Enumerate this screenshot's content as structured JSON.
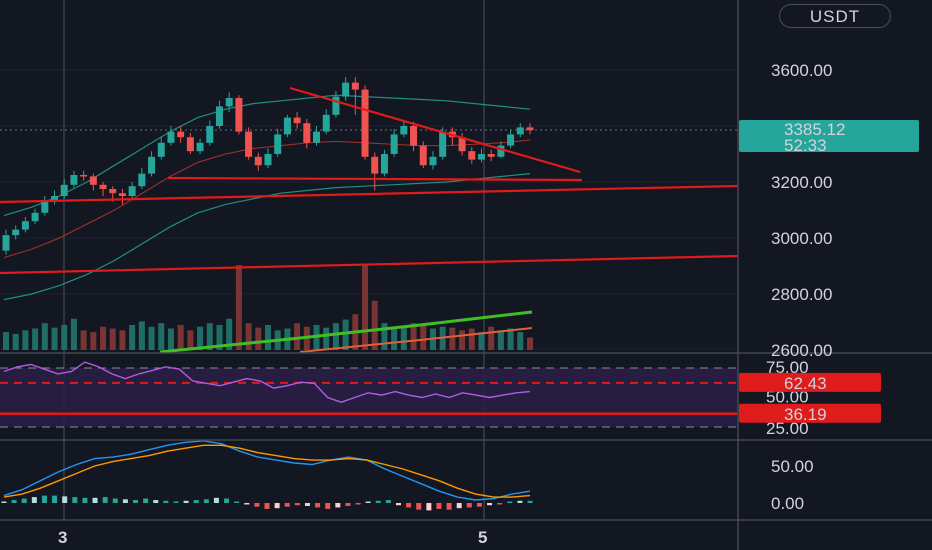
{
  "symbol_badge": "USDT",
  "colors": {
    "background": "#131722",
    "up": "#26a69a",
    "down": "#ef5350",
    "trendline": "#e01b1b",
    "price_badge": "#26a69a",
    "rsi_line": "#9c27b0",
    "macd_line": "#2196f3",
    "signal_line": "#ff9800",
    "volume_ma_green": "#3fbf22"
  },
  "price_axis": {
    "ticks": [
      "3600.00",
      "3200.00",
      "3000.00",
      "2800.00",
      "2600.00"
    ],
    "range": [
      2600,
      3800
    ]
  },
  "current_price": {
    "value": "3385.12",
    "countdown": "52:33"
  },
  "rsi_axis": {
    "ticks": [
      "75.00",
      "50.00",
      "25.00"
    ],
    "upper_label": "62.43",
    "lower_label": "36.19",
    "upper_level": 62.43,
    "lower_level": 36.19
  },
  "macd_axis": {
    "ticks": [
      "50.00",
      "0.00"
    ]
  },
  "time_axis": {
    "labels": [
      "3",
      "5"
    ]
  },
  "chart_data": [
    {
      "type": "candlestick",
      "pane": "price",
      "title": "",
      "ylim": [
        2600,
        3800
      ],
      "candles": [
        [
          2955,
          3010,
          3030,
          2940
        ],
        [
          3010,
          3030,
          3045,
          2995
        ],
        [
          3030,
          3060,
          3075,
          3020
        ],
        [
          3060,
          3090,
          3105,
          3050
        ],
        [
          3090,
          3130,
          3150,
          3080
        ],
        [
          3130,
          3150,
          3170,
          3120
        ],
        [
          3150,
          3190,
          3210,
          3140
        ],
        [
          3190,
          3225,
          3240,
          3180
        ],
        [
          3225,
          3220,
          3240,
          3205
        ],
        [
          3220,
          3190,
          3230,
          3170
        ],
        [
          3190,
          3175,
          3200,
          3150
        ],
        [
          3175,
          3160,
          3185,
          3130
        ],
        [
          3160,
          3150,
          3175,
          3120
        ],
        [
          3150,
          3185,
          3200,
          3140
        ],
        [
          3185,
          3230,
          3250,
          3175
        ],
        [
          3230,
          3290,
          3310,
          3220
        ],
        [
          3290,
          3340,
          3360,
          3280
        ],
        [
          3340,
          3380,
          3400,
          3330
        ],
        [
          3380,
          3360,
          3400,
          3340
        ],
        [
          3360,
          3310,
          3375,
          3300
        ],
        [
          3310,
          3340,
          3355,
          3300
        ],
        [
          3340,
          3400,
          3420,
          3330
        ],
        [
          3400,
          3470,
          3490,
          3390
        ],
        [
          3470,
          3500,
          3520,
          3450
        ],
        [
          3500,
          3380,
          3510,
          3370
        ],
        [
          3380,
          3290,
          3395,
          3280
        ],
        [
          3290,
          3260,
          3305,
          3240
        ],
        [
          3260,
          3300,
          3320,
          3250
        ],
        [
          3300,
          3370,
          3390,
          3290
        ],
        [
          3370,
          3430,
          3440,
          3360
        ],
        [
          3430,
          3410,
          3450,
          3390
        ],
        [
          3410,
          3340,
          3425,
          3320
        ],
        [
          3340,
          3380,
          3400,
          3330
        ],
        [
          3380,
          3440,
          3460,
          3370
        ],
        [
          3440,
          3505,
          3525,
          3430
        ],
        [
          3505,
          3555,
          3575,
          3490
        ],
        [
          3555,
          3530,
          3575,
          3440
        ],
        [
          3530,
          3290,
          3545,
          3280
        ],
        [
          3290,
          3230,
          3305,
          3170
        ],
        [
          3230,
          3300,
          3315,
          3220
        ],
        [
          3300,
          3370,
          3390,
          3290
        ],
        [
          3370,
          3400,
          3420,
          3360
        ],
        [
          3400,
          3330,
          3415,
          3310
        ],
        [
          3330,
          3260,
          3345,
          3250
        ],
        [
          3260,
          3290,
          3310,
          3245
        ],
        [
          3290,
          3380,
          3395,
          3280
        ],
        [
          3380,
          3360,
          3395,
          3330
        ],
        [
          3360,
          3310,
          3375,
          3295
        ],
        [
          3310,
          3280,
          3325,
          3265
        ],
        [
          3280,
          3300,
          3320,
          3270
        ],
        [
          3300,
          3290,
          3315,
          3275
        ],
        [
          3290,
          3330,
          3345,
          3285
        ],
        [
          3330,
          3370,
          3385,
          3320
        ],
        [
          3370,
          3395,
          3410,
          3360
        ],
        [
          3395,
          3385,
          3410,
          3370
        ]
      ],
      "volume": [
        20,
        18,
        22,
        24,
        30,
        25,
        28,
        35,
        22,
        20,
        26,
        24,
        22,
        28,
        32,
        26,
        30,
        24,
        28,
        22,
        26,
        30,
        28,
        35,
        95,
        30,
        25,
        28,
        22,
        24,
        30,
        26,
        28,
        25,
        30,
        34,
        40,
        95,
        55,
        30,
        24,
        26,
        30,
        28,
        24,
        26,
        25,
        22,
        24,
        20,
        26,
        22,
        24,
        20,
        14
      ],
      "bollinger": {
        "upper": [
          3080,
          3110,
          3150,
          3200,
          3260,
          3320,
          3380,
          3430,
          3460,
          3480,
          3490,
          3500,
          3510,
          3505,
          3500,
          3495,
          3490,
          3480,
          3470,
          3460
        ],
        "middle": [
          2930,
          2960,
          3000,
          3050,
          3100,
          3160,
          3220,
          3270,
          3300,
          3320,
          3330,
          3340,
          3345,
          3340,
          3335,
          3330,
          3330,
          3335,
          3340,
          3350
        ],
        "lower": [
          2780,
          2800,
          2830,
          2870,
          2920,
          2980,
          3040,
          3090,
          3120,
          3140,
          3160,
          3170,
          3180,
          3185,
          3190,
          3195,
          3200,
          3210,
          3220,
          3230
        ]
      }
    },
    {
      "type": "line",
      "pane": "rsi",
      "ylim": [
        15,
        85
      ],
      "values": [
        72,
        76,
        78,
        74,
        70,
        72,
        80,
        76,
        70,
        66,
        70,
        73,
        76,
        74,
        64,
        62,
        60,
        63,
        66,
        64,
        58,
        60,
        63,
        62,
        50,
        46,
        50,
        54,
        52,
        55,
        52,
        50,
        53,
        50,
        54,
        52,
        50,
        52,
        54,
        55
      ],
      "upper_band": 62.43,
      "lower_band": 36.19
    },
    {
      "type": "line",
      "pane": "macd",
      "ylim": [
        -20,
        90
      ],
      "series": [
        {
          "values": [
            10,
            18,
            30,
            42,
            52,
            60,
            62,
            66,
            72,
            78,
            82,
            84,
            80,
            70,
            62,
            58,
            54,
            52,
            58,
            62,
            58,
            46,
            36,
            26,
            16,
            8,
            4,
            6,
            12,
            16
          ]
        },
        {
          "values": [
            8,
            12,
            20,
            30,
            40,
            50,
            56,
            60,
            64,
            70,
            74,
            78,
            78,
            74,
            68,
            64,
            60,
            58,
            58,
            60,
            58,
            52,
            46,
            38,
            30,
            20,
            12,
            8,
            8,
            10
          ]
        }
      ],
      "histogram": [
        2,
        4,
        6,
        8,
        10,
        10,
        9,
        8,
        7,
        7,
        8,
        6,
        5,
        4,
        6,
        4,
        3,
        2,
        3,
        4,
        5,
        7,
        6,
        2,
        -2,
        -5,
        -8,
        -7,
        -5,
        -3,
        -4,
        -6,
        -8,
        -6,
        -4,
        -2,
        2,
        3,
        4,
        -3,
        -6,
        -9,
        -10,
        -8,
        -9,
        -7,
        -6,
        -5,
        -3,
        -2,
        2,
        3,
        3
      ]
    }
  ]
}
